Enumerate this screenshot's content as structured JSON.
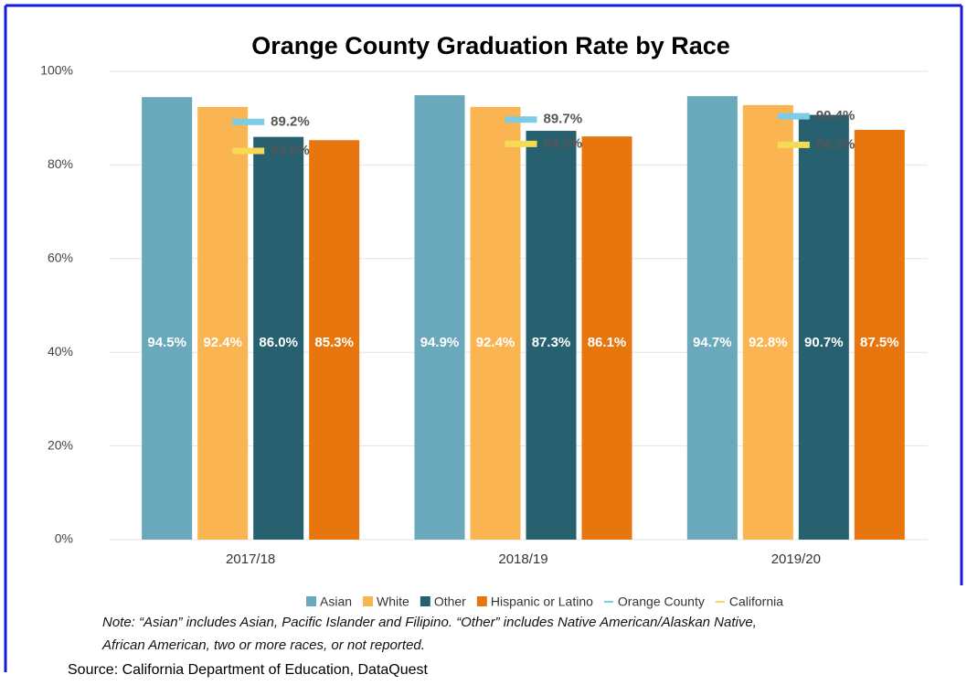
{
  "chart_data": {
    "type": "bar",
    "title": "Orange County Graduation Rate by Race",
    "categories": [
      "2017/18",
      "2018/19",
      "2019/20"
    ],
    "series": [
      {
        "name": "Asian",
        "color": "#6aa8bb",
        "values": [
          94.5,
          94.9,
          94.7
        ],
        "value_labels": [
          "94.5%",
          "94.9%",
          "94.7%"
        ]
      },
      {
        "name": "White",
        "color": "#fbb452",
        "values": [
          92.4,
          92.4,
          92.8
        ],
        "value_labels": [
          "92.4%",
          "92.4%",
          "92.8%"
        ]
      },
      {
        "name": "Other",
        "color": "#27616f",
        "values": [
          86.0,
          87.3,
          90.7
        ],
        "value_labels": [
          "86.0%",
          "87.3%",
          "90.7%"
        ]
      },
      {
        "name": "Hispanic or Latino",
        "color": "#e8760f",
        "values": [
          85.3,
          86.1,
          87.5
        ],
        "value_labels": [
          "85.3%",
          "86.1%",
          "87.5%"
        ]
      },
      {
        "name": "Orange County",
        "type": "line",
        "color": "#7ecbe6",
        "values": [
          89.2,
          89.7,
          90.4
        ],
        "value_labels": [
          "89.2%",
          "89.7%",
          "90.4%"
        ]
      },
      {
        "name": "California",
        "type": "line",
        "color": "#f5da55",
        "values": [
          83.0,
          84.5,
          84.3
        ],
        "value_labels": [
          "83.0%",
          "84.5%",
          "84.3%"
        ]
      }
    ],
    "ylim": [
      0,
      100
    ],
    "yticks": [
      {
        "value": 0,
        "label": "0%"
      },
      {
        "value": 20,
        "label": "20%"
      },
      {
        "value": 40,
        "label": "40%"
      },
      {
        "value": 60,
        "label": "60%"
      },
      {
        "value": 80,
        "label": "80%"
      },
      {
        "value": 100,
        "label": "100%"
      }
    ],
    "grid": true,
    "legend": "bottom"
  },
  "note": [
    "Note: “Asian” includes Asian, Pacific Islander and Filipino.  “Other” includes Native American/Alaskan Native,",
    "African American, two or more races, or not reported."
  ],
  "source": "Source: California Department of Education, DataQuest"
}
